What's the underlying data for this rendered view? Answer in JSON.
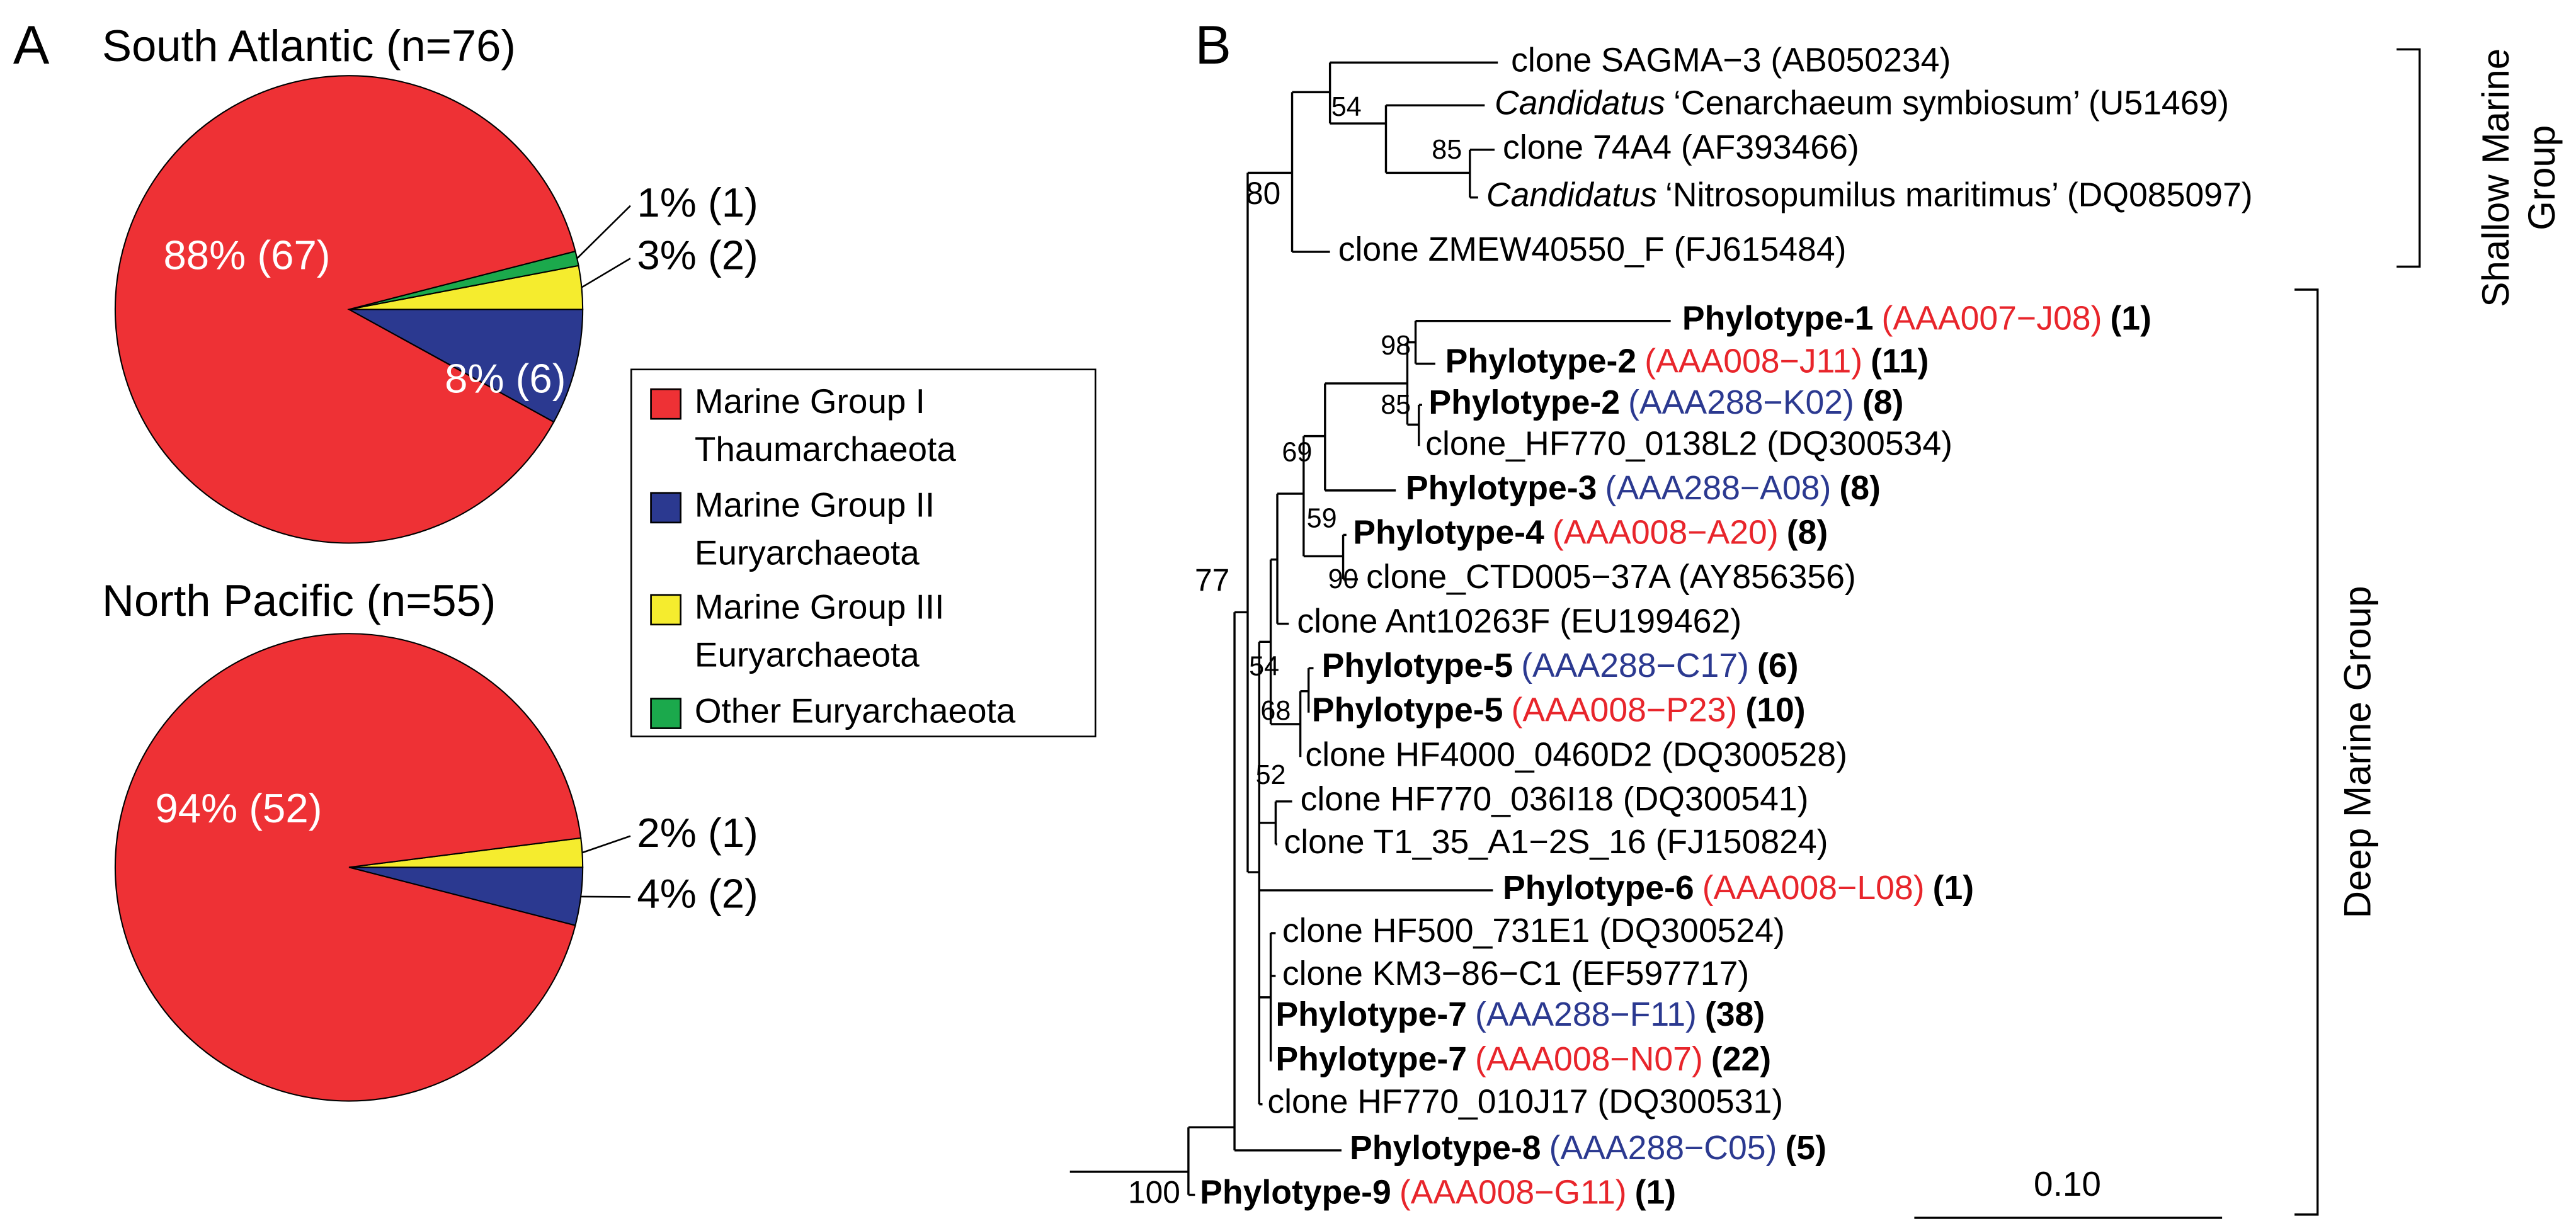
{
  "panel_labels": [
    "A",
    "B"
  ],
  "chart_data": [
    {
      "type": "pie",
      "title": "South Atlantic (n=76)",
      "categories": [
        "Marine Group I\nThaumarchaeota",
        "Marine Group II\nEuryarchaeota",
        "Marine Group III\nEuryarchaeota",
        "Other Euryarchaeota"
      ],
      "colors": [
        "#ee3135",
        "#2b3990",
        "#f5ec2e",
        "#1ba94c"
      ],
      "values": [
        88,
        8,
        3,
        1
      ],
      "value_labels": [
        "88% (67)",
        "8% (6)",
        "3% (2)",
        "1% (1)"
      ]
    },
    {
      "type": "pie",
      "title": "North Pacific (n=55)",
      "categories": [
        "Marine Group I\nThaumarchaeota",
        "Marine Group II\nEuryarchaeota",
        "Marine Group III\nEuryarchaeota"
      ],
      "colors": [
        "#ee3135",
        "#2b3990",
        "#f5ec2e"
      ],
      "values": [
        94,
        4,
        2
      ],
      "value_labels": [
        "94% (52)",
        "4% (2)",
        "2% (1)"
      ]
    }
  ],
  "tree": {
    "leaves": [
      {
        "label": "clone SAGMA−3 (AB050234)"
      },
      {
        "genus": "Candidatus",
        "label": "‘Cenarchaeum symbiosum’ (U51469)"
      },
      {
        "label": "clone 74A4 (AF393466)"
      },
      {
        "genus": "Candidatus",
        "label": "‘Nitrosopumilus maritimus’ (DQ085097)"
      },
      {
        "label": "clone ZMEW40550_F (FJ615484)"
      },
      {
        "phylotype": "Phylotype-1",
        "isolate": "(AAA007−J08)",
        "isolate_color": "#e8252b",
        "count": "(1)"
      },
      {
        "phylotype": "Phylotype-2",
        "isolate": "(AAA008−J11)",
        "isolate_color": "#e8252b",
        "count": "(11)"
      },
      {
        "phylotype": "Phylotype-2",
        "isolate": "(AAA288−K02)",
        "isolate_color": "#2b3990",
        "count": "(8)"
      },
      {
        "label": "clone_HF770_0138L2 (DQ300534)"
      },
      {
        "phylotype": "Phylotype-3",
        "isolate": "(AAA288−A08)",
        "isolate_color": "#2b3990",
        "count": "(8)"
      },
      {
        "phylotype": "Phylotype-4",
        "isolate": "(AAA008−A20)",
        "isolate_color": "#e8252b",
        "count": "(8)"
      },
      {
        "label": "clone_CTD005−37A (AY856356)"
      },
      {
        "label": "clone Ant10263F (EU199462)"
      },
      {
        "phylotype": "Phylotype-5",
        "isolate": "(AAA288−C17)",
        "isolate_color": "#2b3990",
        "count": "(6)"
      },
      {
        "phylotype": "Phylotype-5",
        "isolate": "(AAA008−P23)",
        "isolate_color": "#e8252b",
        "count": "(10)"
      },
      {
        "label": "clone HF4000_0460D2 (DQ300528)"
      },
      {
        "label": "clone HF770_036I18 (DQ300541)"
      },
      {
        "label": "clone T1_35_A1−2S_16 (FJ150824)"
      },
      {
        "phylotype": "Phylotype-6",
        "isolate": "(AAA008−L08)",
        "isolate_color": "#e8252b",
        "count": "(1)"
      },
      {
        "label": "clone HF500_731E1 (DQ300524)"
      },
      {
        "label": "clone KM3−86−C1 (EF597717)"
      },
      {
        "phylotype": "Phylotype-7",
        "isolate": "(AAA288−F11)",
        "isolate_color": "#2b3990",
        "count": "(38)"
      },
      {
        "phylotype": "Phylotype-7",
        "isolate": "(AAA008−N07)",
        "isolate_color": "#e8252b",
        "count": "(22)"
      },
      {
        "label": "clone HF770_010J17 (DQ300531)"
      },
      {
        "phylotype": "Phylotype-8",
        "isolate": "(AAA288−C05)",
        "isolate_color": "#2b3990",
        "count": "(5)"
      },
      {
        "phylotype": "Phylotype-9",
        "isolate": "(AAA008−G11)",
        "isolate_color": "#e8252b",
        "count": "(1)"
      }
    ],
    "bootstrap": [
      54,
      85,
      80,
      98,
      85,
      69,
      59,
      90,
      77,
      54,
      68,
      52,
      100
    ],
    "groups": [
      "Shallow Marine Group",
      "Deep Marine Group"
    ],
    "scale_bar": "0.10"
  }
}
